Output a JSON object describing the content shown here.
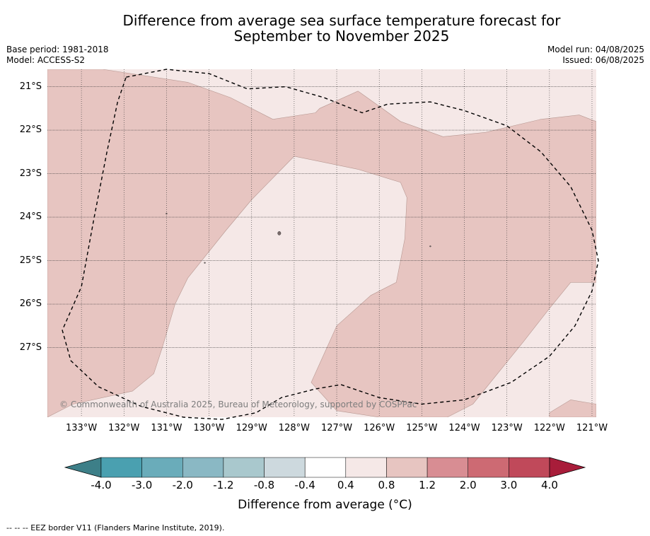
{
  "title_line1": "Difference from average sea surface temperature forecast for",
  "title_line2": "September to November 2025",
  "base_period": "Base period: 1981-2018",
  "model": "Model: ACCESS-S2",
  "model_run": "Model run: 04/08/2025",
  "issued": "Issued: 06/08/2025",
  "copyright": "© Commonwealth of Australia 2025, Bureau of Meteorology, supported by COSPPac",
  "footer": "--  --  -- EEZ border V11 (Flanders Marine Institute, 2019).",
  "colorbar": {
    "title": "Difference from average (°C)",
    "ticks": [
      "-4.0",
      "-3.0",
      "-2.0",
      "-1.2",
      "-0.8",
      "-0.4",
      "0.4",
      "0.8",
      "1.2",
      "2.0",
      "3.0",
      "4.0"
    ],
    "colors": [
      "#3d7f88",
      "#4aa0b0",
      "#6aacba",
      "#8ab8c4",
      "#a9c8cd",
      "#cdd9de",
      "#ffffff",
      "#f5e8e7",
      "#e7c5c1",
      "#d88d93",
      "#cd6a73",
      "#c0495a",
      "#a81d3a"
    ]
  },
  "chart_data": {
    "type": "heatmap",
    "xlim": [
      -133.8,
      -120.9
    ],
    "ylim": [
      -28.6,
      -20.6
    ],
    "x_ticks": [
      "133°W",
      "132°W",
      "131°W",
      "130°W",
      "129°W",
      "128°W",
      "127°W",
      "126°W",
      "125°W",
      "124°W",
      "123°W",
      "122°W",
      "121°W"
    ],
    "y_ticks": [
      "21°S",
      "22°S",
      "23°S",
      "24°S",
      "25°S",
      "26°S",
      "27°S"
    ],
    "grid": true,
    "categories": [
      "0.4 to 0.8",
      "0.8 to 1.2"
    ],
    "category_colors": [
      "#f5e8e7",
      "#e7c5c1"
    ],
    "background_value": "0.4 to 0.8",
    "warm_region_polygon_lonlat": [
      [
        -133.8,
        -20.6
      ],
      [
        -132.5,
        -20.6
      ],
      [
        -130.5,
        -20.9
      ],
      [
        -129.5,
        -21.25
      ],
      [
        -128.5,
        -21.75
      ],
      [
        -127.5,
        -21.6
      ],
      [
        -127.4,
        -21.5
      ],
      [
        -126.5,
        -21.1
      ],
      [
        -125.5,
        -21.8
      ],
      [
        -124.5,
        -22.15
      ],
      [
        -123.5,
        -22.05
      ],
      [
        -122.2,
        -21.75
      ],
      [
        -121.3,
        -21.65
      ],
      [
        -120.9,
        -21.8
      ],
      [
        -120.9,
        -25.5
      ],
      [
        -121.5,
        -25.5
      ],
      [
        -122,
        -26.1
      ],
      [
        -122.6,
        -26.85
      ],
      [
        -123.8,
        -28.3
      ],
      [
        -124.4,
        -28.6
      ],
      [
        -126,
        -28.6
      ],
      [
        -127,
        -28.45
      ],
      [
        -127.6,
        -27.8
      ],
      [
        -127.0,
        -26.5
      ],
      [
        -126.2,
        -25.8
      ],
      [
        -125.6,
        -25.5
      ],
      [
        -125.4,
        -24.5
      ],
      [
        -125.35,
        -23.55
      ],
      [
        -125.5,
        -23.2
      ],
      [
        -126.5,
        -22.9
      ],
      [
        -127.5,
        -22.7
      ],
      [
        -128,
        -22.6
      ],
      [
        -129.0,
        -23.6
      ],
      [
        -129.6,
        -24.3
      ],
      [
        -130.5,
        -25.4
      ],
      [
        -130.8,
        -26.0
      ],
      [
        -131.1,
        -27.0
      ],
      [
        -131.3,
        -27.6
      ],
      [
        -131.8,
        -28.0
      ],
      [
        -133.2,
        -28.3
      ],
      [
        -133.8,
        -28.6
      ]
    ],
    "light_patch_se_lonlat": [
      [
        -122,
        -28.5
      ],
      [
        -121.5,
        -28.2
      ],
      [
        -120.9,
        -28.3
      ],
      [
        -120.9,
        -28.6
      ],
      [
        -122,
        -28.6
      ]
    ],
    "eez_border_lonlat": [
      [
        -131.95,
        -20.78
      ],
      [
        -131.0,
        -20.6
      ],
      [
        -130.0,
        -20.7
      ],
      [
        -129.1,
        -21.05
      ],
      [
        -128.2,
        -21.0
      ],
      [
        -127.3,
        -21.25
      ],
      [
        -126.4,
        -21.6
      ],
      [
        -125.8,
        -21.4
      ],
      [
        -124.8,
        -21.35
      ],
      [
        -124.0,
        -21.55
      ],
      [
        -123.0,
        -21.9
      ],
      [
        -122.2,
        -22.5
      ],
      [
        -121.5,
        -23.3
      ],
      [
        -121.0,
        -24.3
      ],
      [
        -120.85,
        -25.0
      ],
      [
        -121.0,
        -25.7
      ],
      [
        -121.4,
        -26.5
      ],
      [
        -122.0,
        -27.2
      ],
      [
        -122.9,
        -27.8
      ],
      [
        -124.0,
        -28.2
      ],
      [
        -125.0,
        -28.3
      ],
      [
        -126.0,
        -28.15
      ],
      [
        -126.9,
        -27.85
      ],
      [
        -127.5,
        -27.95
      ],
      [
        -128.3,
        -28.15
      ],
      [
        -128.9,
        -28.5
      ],
      [
        -129.7,
        -28.65
      ],
      [
        -130.6,
        -28.6
      ],
      [
        -131.6,
        -28.35
      ],
      [
        -132.6,
        -27.9
      ],
      [
        -133.25,
        -27.3
      ],
      [
        -133.45,
        -26.6
      ],
      [
        -133.0,
        -25.6
      ],
      [
        -132.7,
        -24.0
      ],
      [
        -132.4,
        -22.5
      ],
      [
        -132.15,
        -21.35
      ],
      [
        -131.95,
        -20.78
      ]
    ]
  }
}
